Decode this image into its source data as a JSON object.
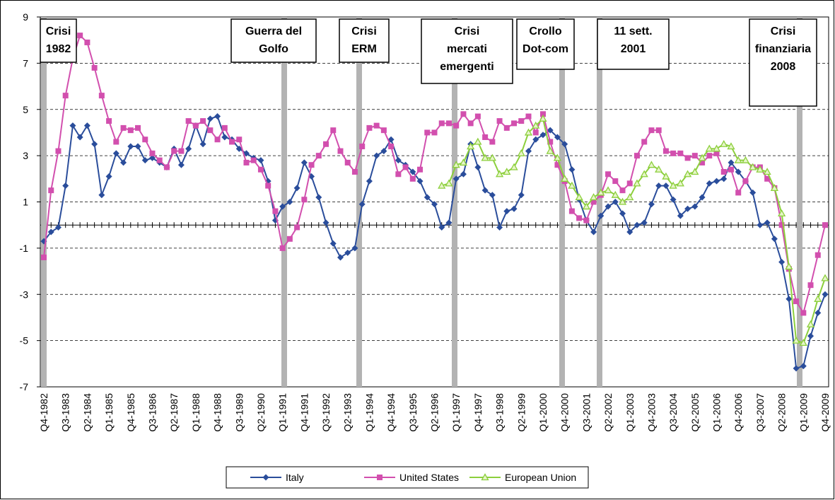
{
  "chart_data": {
    "type": "line",
    "categories": [
      "Q4-1982",
      null,
      null,
      "Q3-1983",
      null,
      null,
      "Q2-1984",
      null,
      null,
      "Q1-1985",
      null,
      null,
      "Q4-1985",
      null,
      null,
      "Q3-1986",
      null,
      null,
      "Q2-1987",
      null,
      null,
      "Q1-1988",
      null,
      null,
      "Q4-1988",
      null,
      null,
      "Q3-1989",
      null,
      null,
      "Q2-1990",
      null,
      null,
      "Q1-1991",
      null,
      null,
      "Q4-1991",
      null,
      null,
      "Q3-1992",
      null,
      null,
      "Q2-1993",
      null,
      null,
      "Q1-1994",
      null,
      null,
      "Q4-1994",
      null,
      null,
      "Q3-1995",
      null,
      null,
      "Q2-1996",
      null,
      null,
      "Q1-1997",
      null,
      null,
      "Q4-1997",
      null,
      null,
      "Q3-1998",
      null,
      null,
      "Q2-1999",
      null,
      null,
      "Q1-2000",
      null,
      null,
      "Q4-2000",
      null,
      null,
      "Q3-2001",
      null,
      null,
      "Q2-2002",
      null,
      null,
      "Q1-2003",
      null,
      null,
      "Q4-2003",
      null,
      null,
      "Q3-2004",
      null,
      null,
      "Q2-2005",
      null,
      null,
      "Q1-2006",
      null,
      null,
      "Q4-2006",
      null,
      null,
      "Q3-2007",
      null,
      null,
      "Q2-2008",
      null,
      null,
      "Q1-2009",
      null,
      null,
      "Q4-2009"
    ],
    "series": [
      {
        "name": "Italy",
        "color": "#2a4d9b",
        "marker": "diamond",
        "values": [
          -0.7,
          -0.3,
          -0.1,
          1.7,
          4.3,
          3.8,
          4.3,
          3.5,
          1.3,
          2.1,
          3.1,
          2.7,
          3.4,
          3.4,
          2.8,
          2.9,
          2.7,
          2.5,
          3.3,
          2.6,
          3.3,
          4.3,
          3.5,
          4.6,
          4.7,
          3.8,
          3.7,
          3.3,
          3.1,
          2.9,
          2.8,
          1.9,
          0.2,
          0.8,
          1.0,
          1.6,
          2.7,
          2.1,
          1.2,
          0.1,
          -0.8,
          -1.4,
          -1.2,
          -1.0,
          0.9,
          1.9,
          3.0,
          3.2,
          3.7,
          2.8,
          2.6,
          2.3,
          1.9,
          1.2,
          0.9,
          -0.1,
          0.1,
          2.0,
          2.2,
          3.5,
          2.5,
          1.5,
          1.3,
          -0.1,
          0.6,
          0.7,
          1.3,
          3.2,
          3.7,
          3.9,
          4.1,
          3.8,
          3.5,
          2.4,
          1.1,
          0.2,
          -0.3,
          0.4,
          0.8,
          1.0,
          0.5,
          -0.3,
          0.0,
          0.1,
          0.9,
          1.7,
          1.7,
          1.1,
          0.4,
          0.7,
          0.8,
          1.2,
          1.8,
          1.9,
          2.0,
          2.7,
          2.3,
          1.9,
          1.4,
          0.0,
          0.1,
          -0.6,
          -1.6,
          -3.2,
          -6.2,
          -6.1,
          -4.8,
          -3.8,
          -3.0
        ]
      },
      {
        "name": "United States",
        "color": "#d24fae",
        "marker": "square",
        "values": [
          -1.4,
          1.5,
          3.2,
          5.6,
          7.2,
          8.2,
          7.9,
          6.8,
          5.6,
          4.5,
          3.6,
          4.2,
          4.1,
          4.2,
          3.7,
          3.1,
          2.8,
          2.5,
          3.2,
          3.2,
          4.5,
          4.3,
          4.5,
          4.1,
          3.7,
          4.2,
          3.6,
          3.7,
          2.7,
          2.8,
          2.4,
          1.7,
          0.6,
          -1.0,
          -0.6,
          -0.1,
          1.1,
          2.6,
          3.0,
          3.5,
          4.1,
          3.2,
          2.7,
          2.3,
          3.4,
          4.2,
          4.3,
          4.1,
          3.4,
          2.2,
          2.5,
          2.0,
          2.4,
          4.0,
          4.0,
          4.4,
          4.4,
          4.3,
          4.8,
          4.4,
          4.7,
          3.8,
          3.6,
          4.5,
          4.2,
          4.4,
          4.5,
          4.7,
          4.0,
          4.8,
          3.6,
          2.6,
          1.9,
          0.6,
          0.3,
          0.2,
          1.0,
          1.3,
          2.2,
          1.9,
          1.5,
          1.8,
          3.0,
          3.6,
          4.1,
          4.1,
          3.2,
          3.1,
          3.1,
          2.9,
          3.0,
          2.7,
          3.0,
          3.1,
          2.3,
          2.4,
          1.4,
          1.9,
          2.5,
          2.5,
          2.0,
          1.6,
          0.0,
          -1.9,
          -3.3,
          -3.8,
          -2.6,
          -1.3,
          0.0
        ]
      },
      {
        "name": "European Union",
        "color": "#8ccf3c",
        "marker": "triangle",
        "values": [
          null,
          null,
          null,
          null,
          null,
          null,
          null,
          null,
          null,
          null,
          null,
          null,
          null,
          null,
          null,
          null,
          null,
          null,
          null,
          null,
          null,
          null,
          null,
          null,
          null,
          null,
          null,
          null,
          null,
          null,
          null,
          null,
          null,
          null,
          null,
          null,
          null,
          null,
          null,
          null,
          null,
          null,
          null,
          null,
          null,
          null,
          null,
          null,
          null,
          null,
          null,
          null,
          null,
          null,
          null,
          1.7,
          1.8,
          2.6,
          2.7,
          3.4,
          3.6,
          2.9,
          2.9,
          2.2,
          2.3,
          2.5,
          3.1,
          4.0,
          4.3,
          4.6,
          3.2,
          2.9,
          2.0,
          1.7,
          1.2,
          0.8,
          1.2,
          1.4,
          1.5,
          1.3,
          1.0,
          1.2,
          1.8,
          2.2,
          2.6,
          2.4,
          2.1,
          1.7,
          1.8,
          2.2,
          2.3,
          2.9,
          3.3,
          3.3,
          3.5,
          3.4,
          2.8,
          2.8,
          2.5,
          2.4,
          2.3,
          1.6,
          0.5,
          -1.8,
          -5.0,
          -5.1,
          -4.3,
          -3.2,
          -2.3
        ]
      }
    ],
    "ylim": [
      -7,
      9
    ],
    "yticks": [
      -7,
      -5,
      -3,
      -1,
      1,
      3,
      5,
      7,
      9
    ],
    "grid": true,
    "legend": "bottom",
    "annotations": [
      {
        "lines": [
          "Crisi",
          "1982"
        ]
      },
      {
        "lines": [
          "Guerra del",
          "Golfo"
        ]
      },
      {
        "lines": [
          "Crisi",
          "ERM"
        ]
      },
      {
        "lines": [
          "Crisi",
          "mercati",
          "emergenti"
        ]
      },
      {
        "lines": [
          "Crollo",
          "Dot-com"
        ]
      },
      {
        "lines": [
          "11 sett.",
          "2001"
        ]
      },
      {
        "lines": [
          "Crisi",
          "finanziaria",
          "2008"
        ]
      }
    ]
  }
}
